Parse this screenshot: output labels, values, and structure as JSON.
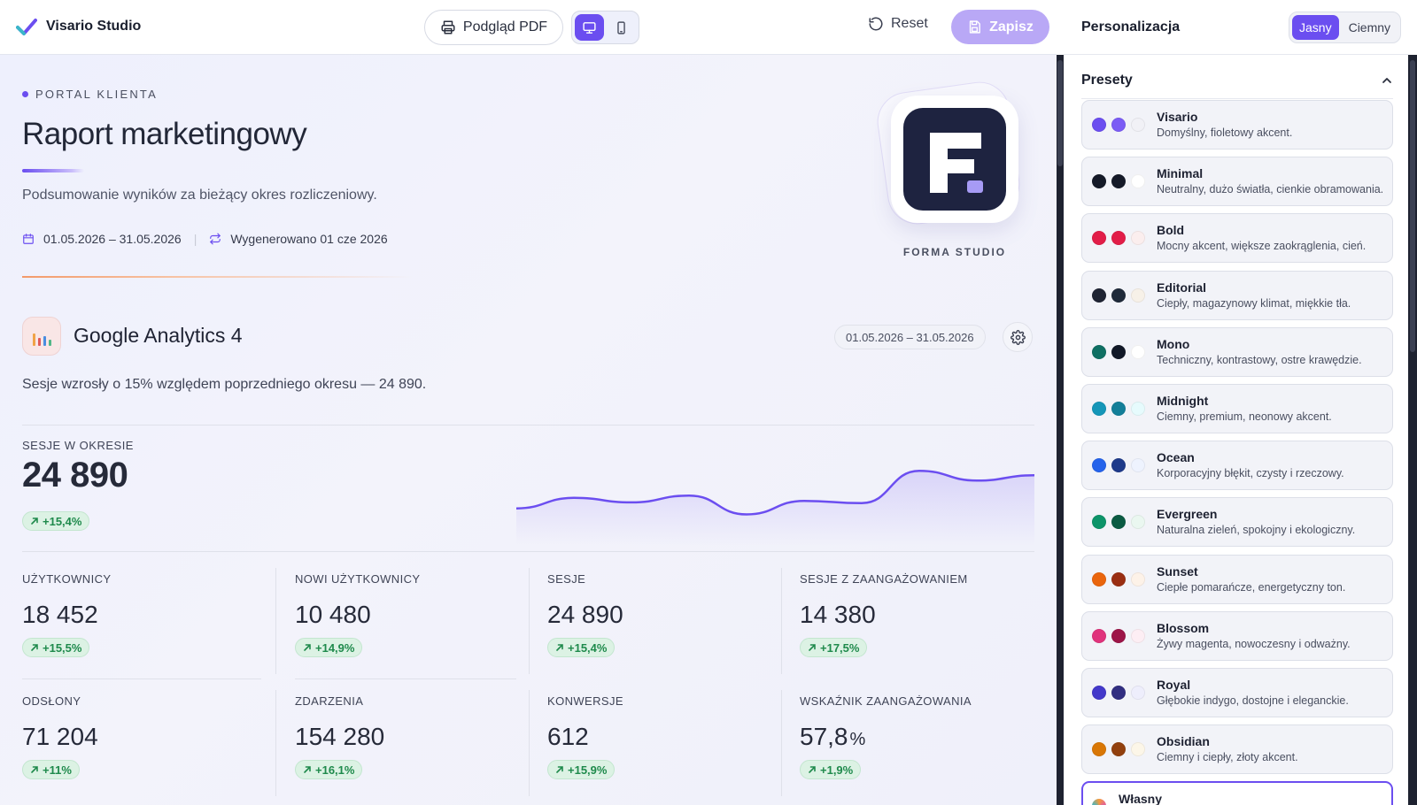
{
  "app": {
    "name": "Visario Studio"
  },
  "toolbar": {
    "pdf_label": "Podgląd PDF",
    "reset_label": "Reset",
    "save_label": "Zapisz"
  },
  "report": {
    "eyebrow": "PORTAL KLIENTA",
    "title": "Raport marketingowy",
    "subtitle": "Podsumowanie wyników za bieżący okres rozliczeniowy.",
    "period": "01.05.2026 – 31.05.2026",
    "generated": "Wygenerowano 01 cze 2026",
    "brand_caption": "FORMA STUDIO",
    "brand_letter": "F"
  },
  "ga": {
    "title": "Google Analytics 4",
    "range": "01.05.2026 – 31.05.2026",
    "summary": "Sesje wzrosły o 15% względem poprzedniego okresu — 24 890.",
    "hero": {
      "label": "SESJE W OKRESIE",
      "value": "24 890",
      "change": "+15,4%"
    },
    "sparkline": [
      0.38,
      0.52,
      0.46,
      0.55,
      0.3,
      0.48,
      0.45,
      0.88,
      0.75,
      0.82
    ],
    "kpis": [
      {
        "label": "UŻYTKOWNICY",
        "value": "18 452",
        "unit": "",
        "change": "+15,5%"
      },
      {
        "label": "NOWI UŻYTKOWNICY",
        "value": "10 480",
        "unit": "",
        "change": "+14,9%"
      },
      {
        "label": "SESJE",
        "value": "24 890",
        "unit": "",
        "change": "+15,4%"
      },
      {
        "label": "SESJE Z ZAANGAŻOWANIEM",
        "value": "14 380",
        "unit": "",
        "change": "+17,5%"
      },
      {
        "label": "ODSŁONY",
        "value": "71 204",
        "unit": "",
        "change": "+11%"
      },
      {
        "label": "ZDARZENIA",
        "value": "154 280",
        "unit": "",
        "change": "+16,1%"
      },
      {
        "label": "KONWERSJE",
        "value": "612",
        "unit": "",
        "change": "+15,9%"
      },
      {
        "label": "WSKAŹNIK ZAANGAŻOWANIA",
        "value": "57,8",
        "unit": "%",
        "change": "+1,9%"
      }
    ]
  },
  "panel": {
    "title": "Personalizacja",
    "theme": {
      "light": "Jasny",
      "dark": "Ciemny",
      "selected": "Jasny"
    },
    "presets_title": "Presety",
    "presets": [
      {
        "name": "Visario",
        "desc": "Domyślny, fioletowy akcent.",
        "colors": [
          "#6b4ef0",
          "#7b5cf5",
          "#f1f1f6"
        ]
      },
      {
        "name": "Minimal",
        "desc": "Neutralny, dużo światła, cienkie obramowania.",
        "colors": [
          "#151a28",
          "#151a28",
          "#ffffff"
        ]
      },
      {
        "name": "Bold",
        "desc": "Mocny akcent, większe zaokrąglenia, cień.",
        "colors": [
          "#e21d48",
          "#e21d48",
          "#fbeeee"
        ]
      },
      {
        "name": "Editorial",
        "desc": "Ciepły, magazynowy klimat, miękkie tła.",
        "colors": [
          "#1f2433",
          "#1f2a3a",
          "#f7f1e8"
        ]
      },
      {
        "name": "Mono",
        "desc": "Techniczny, kontrastowy, ostre krawędzie.",
        "colors": [
          "#0f6f63",
          "#111827",
          "#ffffff"
        ]
      },
      {
        "name": "Midnight",
        "desc": "Ciemny, premium, neonowy akcent.",
        "colors": [
          "#1596b8",
          "#137f99",
          "#e6fbfd"
        ]
      },
      {
        "name": "Ocean",
        "desc": "Korporacyjny błękit, czysty i rzeczowy.",
        "colors": [
          "#2563eb",
          "#1e3a8a",
          "#eef3fe"
        ]
      },
      {
        "name": "Evergreen",
        "desc": "Naturalna zieleń, spokojny i ekologiczny.",
        "colors": [
          "#0d9469",
          "#0b5b43",
          "#eaf7f0"
        ]
      },
      {
        "name": "Sunset",
        "desc": "Ciepłe pomarańcze, energetyczny ton.",
        "colors": [
          "#ea650d",
          "#9a2e12",
          "#fdf2e8"
        ]
      },
      {
        "name": "Blossom",
        "desc": "Żywy magenta, nowoczesny i odważny.",
        "colors": [
          "#e0337c",
          "#9d1548",
          "#fdeef4"
        ]
      },
      {
        "name": "Royal",
        "desc": "Głębokie indygo, dostojne i eleganckie.",
        "colors": [
          "#4338ca",
          "#312e81",
          "#eeeefc"
        ]
      },
      {
        "name": "Obsidian",
        "desc": "Ciemny i ciepły, złoty akcent.",
        "colors": [
          "#d97706",
          "#92400e",
          "#fcf6e8"
        ]
      }
    ],
    "custom_label": "Własny"
  },
  "colors": {
    "accent": "#6b4ef0",
    "positive": "#1f8a4c"
  }
}
